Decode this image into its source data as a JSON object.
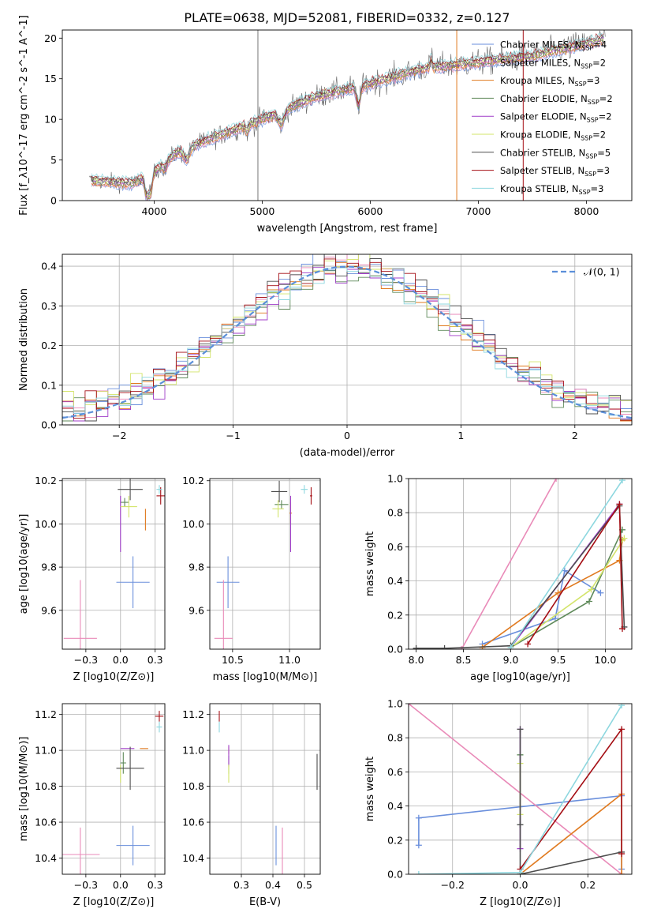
{
  "colors": {
    "series": [
      "#6a8fdc",
      "#e98ab8",
      "#e0791e",
      "#5f8a5a",
      "#a13ec9",
      "#d3e46a",
      "#4d4d4d",
      "#a50f15",
      "#8dd7df"
    ],
    "gauss": "#5b8fd9",
    "grid": "#b0b0b0",
    "flux_gray": "#666666"
  },
  "chart_data": [
    {
      "type": "line",
      "panel": "spectrum",
      "title": "PLATE=0638, MJD=52081, FIBERID=0332, z=0.127",
      "xlabel": "wavelength [Angstrom, rest frame]",
      "ylabel": "Flux [f_λ10^-17 erg cm^-2 s^-1 A^-1]",
      "xlim": [
        3150,
        8420
      ],
      "ylim": [
        0,
        21
      ],
      "xticks": [
        4000,
        5000,
        6000,
        7000,
        8000
      ],
      "yticks": [
        0,
        5,
        10,
        15,
        20
      ],
      "legend_position": "upper right",
      "trend_wavelength": [
        3400,
        3600,
        3800,
        4000,
        4200,
        4500,
        5000,
        5500,
        6000,
        6500,
        7000,
        7500,
        8000,
        8200
      ],
      "trend_flux": [
        2.5,
        2.3,
        2.1,
        3.5,
        5.8,
        7.5,
        10.0,
        12.8,
        14.4,
        16.3,
        17.0,
        17.8,
        19.3,
        20.0
      ],
      "series": [
        {
          "name": "Chabrier MILES, N_SSP=4",
          "color": "#6a8fdc"
        },
        {
          "name": "Salpeter MILES, N_SSP=2",
          "color": "#e98ab8"
        },
        {
          "name": "Kroupa MILES, N_SSP=3",
          "color": "#e0791e"
        },
        {
          "name": "Chabrier ELODIE, N_SSP=2",
          "color": "#5f8a5a"
        },
        {
          "name": "Salpeter ELODIE, N_SSP=2",
          "color": "#a13ec9"
        },
        {
          "name": "Kroupa ELODIE, N_SSP=2",
          "color": "#d3e46a"
        },
        {
          "name": "Chabrier STELIB, N_SSP=5",
          "color": "#4d4d4d"
        },
        {
          "name": "Salpeter STELIB, N_SSP=3",
          "color": "#a50f15"
        },
        {
          "name": "Kroupa STELIB, N_SSP=3",
          "color": "#8dd7df"
        }
      ]
    },
    {
      "type": "histogram",
      "panel": "residuals",
      "xlabel": "(data-model)/error",
      "ylabel": "Normed distribution",
      "xlim": [
        -2.5,
        2.5
      ],
      "ylim": [
        0,
        0.43
      ],
      "xticks": [
        -2,
        -1,
        0,
        1,
        2
      ],
      "yticks": [
        0.0,
        0.1,
        0.2,
        0.3,
        0.4
      ],
      "grid": true,
      "bin_width": 0.1,
      "legend": "𝒩(0, 1)",
      "legend_position": "upper right"
    },
    {
      "type": "scatter",
      "panel": "age-vs-Z",
      "xlabel": "Z [log10(Z/Z⊙)]",
      "ylabel": "age [log10(age/yr)]",
      "xlim": [
        -0.42,
        0.32
      ],
      "ylim": [
        9.42,
        10.21
      ],
      "xticks": [
        -0.25,
        0.0,
        0.25
      ],
      "yticks": [
        9.6,
        9.8,
        10.0,
        10.2
      ],
      "grid": true,
      "points": [
        {
          "x": 0.09,
          "y": 9.73,
          "xerr": 0.12,
          "yerr": 0.12,
          "c": 0
        },
        {
          "x": -0.29,
          "y": 9.47,
          "xerr": 0.12,
          "yerr": 0.27,
          "c": 1
        },
        {
          "x": 0.18,
          "y": 10.02,
          "xerr": 0.0,
          "yerr": 0.05,
          "c": 2
        },
        {
          "x": 0.03,
          "y": 10.1,
          "xerr": 0.03,
          "yerr": 0.02,
          "c": 3
        },
        {
          "x": 0.0,
          "y": 10.0,
          "xerr": 0.0,
          "yerr": 0.13,
          "c": 4
        },
        {
          "x": 0.06,
          "y": 10.08,
          "xerr": 0.06,
          "yerr": 0.05,
          "c": 5
        },
        {
          "x": 0.07,
          "y": 10.16,
          "xerr": 0.09,
          "yerr": 0.05,
          "c": 6
        },
        {
          "x": 0.29,
          "y": 10.13,
          "xerr": 0.03,
          "yerr": 0.04,
          "c": 7
        },
        {
          "x": 0.28,
          "y": 10.16,
          "xerr": 0.02,
          "yerr": 0.02,
          "c": 8
        }
      ]
    },
    {
      "type": "scatter",
      "panel": "age-vs-mass",
      "xlabel": "mass [log10(M/M⊙)]",
      "ylabel": "",
      "xlim": [
        10.3,
        11.27
      ],
      "ylim": [
        9.42,
        10.21
      ],
      "xticks": [
        10.5,
        11.0
      ],
      "yticks": [
        9.6,
        9.8,
        10.0,
        10.2
      ],
      "grid": true,
      "points": [
        {
          "x": 10.46,
          "y": 9.73,
          "xerr": 0.1,
          "yerr": 0.12,
          "c": 0
        },
        {
          "x": 10.42,
          "y": 9.47,
          "xerr": 0.08,
          "yerr": 0.27,
          "c": 1
        },
        {
          "x": 11.01,
          "y": 10.05,
          "xerr": 0.01,
          "yerr": 0.05,
          "c": 2
        },
        {
          "x": 10.93,
          "y": 10.09,
          "xerr": 0.06,
          "yerr": 0.02,
          "c": 3
        },
        {
          "x": 11.01,
          "y": 10.0,
          "xerr": 0.0,
          "yerr": 0.13,
          "c": 4
        },
        {
          "x": 10.9,
          "y": 10.07,
          "xerr": 0.05,
          "yerr": 0.04,
          "c": 5
        },
        {
          "x": 10.91,
          "y": 10.15,
          "xerr": 0.07,
          "yerr": 0.05,
          "c": 6
        },
        {
          "x": 11.19,
          "y": 10.13,
          "xerr": 0.01,
          "yerr": 0.04,
          "c": 7
        },
        {
          "x": 11.13,
          "y": 10.16,
          "xerr": 0.03,
          "yerr": 0.02,
          "c": 8
        }
      ]
    },
    {
      "type": "line",
      "panel": "mass-weight-vs-age",
      "xlabel": "age [log10(age/yr)]",
      "ylabel": "mass weight",
      "xlim": [
        7.92,
        10.28
      ],
      "ylim": [
        0,
        1
      ],
      "xticks": [
        8.0,
        8.5,
        9.0,
        9.5,
        10.0
      ],
      "yticks": [
        0.0,
        0.2,
        0.4,
        0.6,
        0.8,
        1.0
      ],
      "grid": true,
      "series": [
        {
          "c": 0,
          "x": [
            8.7,
            9.47,
            9.57,
            9.95
          ],
          "y": [
            0.03,
            0.18,
            0.46,
            0.33
          ]
        },
        {
          "c": 1,
          "x": [
            8.48,
            9.48
          ],
          "y": [
            0.0,
            1.0
          ]
        },
        {
          "c": 2,
          "x": [
            8.7,
            9.5,
            10.15,
            10.18
          ],
          "y": [
            0.01,
            0.33,
            0.52,
            0.64
          ]
        },
        {
          "c": 3,
          "x": [
            9.0,
            9.83,
            10.18
          ],
          "y": [
            0.01,
            0.28,
            0.7
          ]
        },
        {
          "c": 4,
          "x": [
            9.0,
            10.15
          ],
          "y": [
            0.01,
            0.85
          ]
        },
        {
          "c": 5,
          "x": [
            9.0,
            9.85,
            10.2
          ],
          "y": [
            0.01,
            0.35,
            0.65
          ]
        },
        {
          "c": 6,
          "x": [
            8.0,
            8.3,
            9.0,
            10.15,
            10.2
          ],
          "y": [
            0.005,
            0.005,
            0.02,
            0.84,
            0.13
          ]
        },
        {
          "c": 7,
          "x": [
            9.18,
            10.15,
            10.18
          ],
          "y": [
            0.03,
            0.85,
            0.12
          ]
        },
        {
          "c": 8,
          "x": [
            9.0,
            10.18
          ],
          "y": [
            0.01,
            0.99
          ]
        }
      ]
    },
    {
      "type": "scatter",
      "panel": "mass-vs-Z",
      "xlabel": "Z [log10(Z/Z⊙)]",
      "ylabel": "mass [log10(M/M⊙)]",
      "xlim": [
        -0.42,
        0.32
      ],
      "ylim": [
        10.31,
        11.26
      ],
      "xticks": [
        -0.25,
        0.0,
        0.25
      ],
      "yticks": [
        10.4,
        10.6,
        10.8,
        11.0,
        11.2
      ],
      "grid": true,
      "points": [
        {
          "x": 0.09,
          "y": 10.47,
          "xerr": 0.12,
          "yerr": 0.11,
          "c": 0
        },
        {
          "x": -0.29,
          "y": 10.42,
          "xerr": 0.14,
          "yerr": 0.15,
          "c": 1
        },
        {
          "x": 0.17,
          "y": 11.01,
          "xerr": 0.03,
          "yerr": 0.0,
          "c": 2
        },
        {
          "x": 0.02,
          "y": 10.93,
          "xerr": 0.02,
          "yerr": 0.06,
          "c": 3
        },
        {
          "x": 0.05,
          "y": 11.01,
          "xerr": 0.05,
          "yerr": 0.0,
          "c": 4
        },
        {
          "x": 0.0,
          "y": 10.87,
          "xerr": 0.0,
          "yerr": 0.05,
          "c": 5
        },
        {
          "x": 0.07,
          "y": 10.9,
          "xerr": 0.1,
          "yerr": 0.12,
          "c": 6
        },
        {
          "x": 0.28,
          "y": 11.19,
          "xerr": 0.03,
          "yerr": 0.03,
          "c": 7
        },
        {
          "x": 0.28,
          "y": 11.13,
          "xerr": 0.02,
          "yerr": 0.03,
          "c": 8
        }
      ]
    },
    {
      "type": "scatter",
      "panel": "mass-vs-EBV",
      "xlabel": "E(B-V)",
      "ylabel": "",
      "xlim": [
        0.2,
        0.55
      ],
      "ylim": [
        10.31,
        11.26
      ],
      "xticks": [
        0.3,
        0.4,
        0.5
      ],
      "yticks": [
        10.4,
        10.6,
        10.8,
        11.0,
        11.2
      ],
      "grid": true,
      "points": [
        {
          "x": 0.41,
          "y": 10.47,
          "xerr": 0.0,
          "yerr": 0.11,
          "c": 0
        },
        {
          "x": 0.43,
          "y": 10.42,
          "xerr": 0.0,
          "yerr": 0.15,
          "c": 1
        },
        {
          "x": 0.26,
          "y": 11.0,
          "xerr": 0.0,
          "yerr": 0.02,
          "c": 2
        },
        {
          "x": 0.26,
          "y": 10.92,
          "xerr": 0.0,
          "yerr": 0.05,
          "c": 3
        },
        {
          "x": 0.26,
          "y": 10.97,
          "xerr": 0.0,
          "yerr": 0.06,
          "c": 4
        },
        {
          "x": 0.26,
          "y": 10.87,
          "xerr": 0.0,
          "yerr": 0.05,
          "c": 5
        },
        {
          "x": 0.54,
          "y": 10.88,
          "xerr": 0.0,
          "yerr": 0.1,
          "c": 6
        },
        {
          "x": 0.23,
          "y": 11.19,
          "xerr": 0.0,
          "yerr": 0.03,
          "c": 7
        },
        {
          "x": 0.23,
          "y": 11.13,
          "xerr": 0.0,
          "yerr": 0.03,
          "c": 8
        }
      ]
    },
    {
      "type": "line",
      "panel": "mass-weight-vs-Z",
      "xlabel": "Z [log10(Z/Z⊙)]",
      "ylabel": "mass weight",
      "xlim": [
        -0.33,
        0.33
      ],
      "ylim": [
        0,
        1
      ],
      "xticks": [
        -0.2,
        0.0,
        0.2
      ],
      "yticks": [
        0.0,
        0.2,
        0.4,
        0.6,
        0.8,
        1.0
      ],
      "grid": true,
      "series": [
        {
          "c": 0,
          "x": [
            -0.3,
            -0.3,
            0.3,
            0.3
          ],
          "y": [
            0.17,
            0.33,
            0.46,
            0.03
          ]
        },
        {
          "c": 1,
          "x": [
            -0.33,
            0.3
          ],
          "y": [
            1.0,
            0.0
          ]
        },
        {
          "c": 2,
          "x": [
            0.0,
            0.3,
            0.3
          ],
          "y": [
            0.0,
            0.47,
            0.0
          ]
        },
        {
          "c": 3,
          "x": [
            0.0,
            0.0
          ],
          "y": [
            0.29,
            0.7
          ]
        },
        {
          "c": 4,
          "x": [
            0.0,
            0.0
          ],
          "y": [
            0.15,
            0.85
          ]
        },
        {
          "c": 5,
          "x": [
            0.0,
            0.0
          ],
          "y": [
            0.35,
            0.65
          ]
        },
        {
          "c": 6,
          "x": [
            0.0,
            0.0,
            0.0,
            0.3
          ],
          "y": [
            0.85,
            0.29,
            0.0,
            0.13
          ]
        },
        {
          "c": 7,
          "x": [
            0.0,
            0.3,
            0.3
          ],
          "y": [
            0.03,
            0.85,
            0.12
          ]
        },
        {
          "c": 8,
          "x": [
            -0.3,
            0.0,
            0.3
          ],
          "y": [
            0.0,
            0.01,
            0.99
          ]
        }
      ]
    }
  ]
}
